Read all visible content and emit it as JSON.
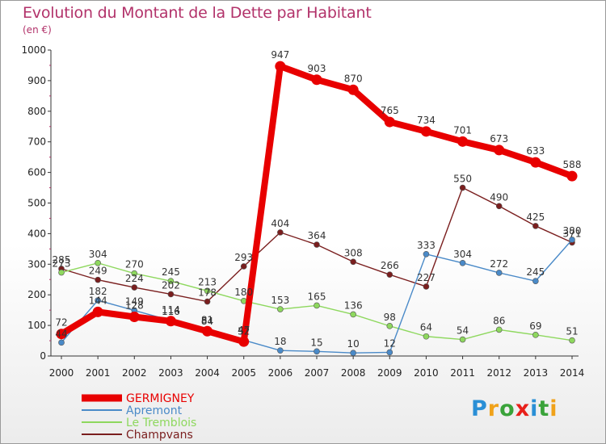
{
  "header": {
    "title": "Evolution du Montant de la Dette par Habitant",
    "unit": "(en €)"
  },
  "logo": {
    "text": "Proxiti",
    "letter_colors": [
      "#2a8fd6",
      "#f0a21a",
      "#3aa33a",
      "#e8201a",
      "#2a8fd6",
      "#3aa33a",
      "#f0a21a"
    ]
  },
  "chart_data": {
    "type": "line",
    "x": [
      2000,
      2001,
      2002,
      2003,
      2004,
      2005,
      2006,
      2007,
      2008,
      2009,
      2010,
      2011,
      2012,
      2013,
      2014
    ],
    "ylim": [
      0,
      1000
    ],
    "yticks": [
      0,
      100,
      200,
      300,
      400,
      500,
      600,
      700,
      800,
      900,
      1000
    ],
    "grid": false,
    "legend_position": "bottom-left",
    "series": [
      {
        "name": "GERMIGNEY",
        "color": "#e80000",
        "values": [
          72,
          144,
          128,
          114,
          81,
          47,
          947,
          903,
          870,
          765,
          734,
          701,
          673,
          633,
          588
        ],
        "labels": [
          "72",
          "144",
          "128",
          "114",
          "81",
          "47",
          "947",
          "903",
          "870",
          "765",
          "734",
          "701",
          "673",
          "633",
          "588"
        ]
      },
      {
        "name": "Apremont",
        "color": "#4a8ac8",
        "values": [
          44,
          182,
          149,
          116,
          84,
          52,
          18,
          15,
          10,
          12,
          333,
          304,
          272,
          245,
          380
        ],
        "labels": [
          "44",
          "182",
          "149",
          "116",
          "84",
          "52",
          "18",
          "15",
          "10",
          "12",
          "333",
          "304",
          "272",
          "245",
          "380"
        ]
      },
      {
        "name": "Le Tremblois",
        "color": "#8ed85e",
        "values": [
          273,
          304,
          270,
          245,
          213,
          180,
          153,
          165,
          136,
          98,
          64,
          54,
          86,
          69,
          51
        ],
        "labels": [
          "273",
          "304",
          "270",
          "245",
          "213",
          "180",
          "153",
          "165",
          "136",
          "98",
          "64",
          "54",
          "86",
          "69",
          "51"
        ]
      },
      {
        "name": "Champvans",
        "color": "#7a1e1e",
        "values": [
          285,
          249,
          224,
          202,
          178,
          293,
          404,
          364,
          308,
          266,
          227,
          550,
          490,
          425,
          371
        ],
        "labels": [
          "285",
          "249",
          "224",
          "202",
          "178",
          "293",
          "404",
          "364",
          "308",
          "266",
          "227",
          "550",
          "490",
          "425",
          "371"
        ]
      }
    ]
  }
}
